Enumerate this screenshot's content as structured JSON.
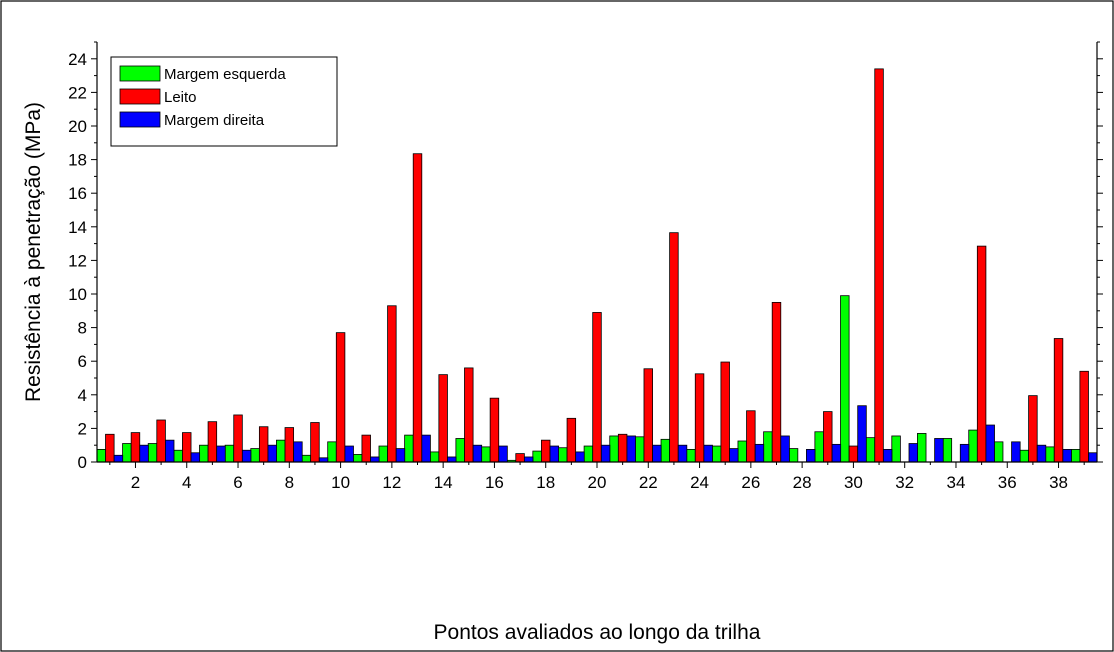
{
  "chart_data": {
    "type": "bar",
    "title": "",
    "xlabel": "Pontos avaliados ao longo da trilha",
    "ylabel": "Resistência à penetração (MPa)",
    "ylim": [
      0,
      25
    ],
    "yticks": [
      0,
      2,
      4,
      6,
      8,
      10,
      12,
      14,
      16,
      18,
      20,
      22,
      24
    ],
    "xlim": [
      0.5,
      39.5
    ],
    "xtick_labels": [
      "2",
      "4",
      "6",
      "8",
      "10",
      "12",
      "14",
      "16",
      "18",
      "20",
      "22",
      "24",
      "26",
      "28",
      "30",
      "32",
      "34",
      "36",
      "38"
    ],
    "xtick_values": [
      2,
      4,
      6,
      8,
      10,
      12,
      14,
      16,
      18,
      20,
      22,
      24,
      26,
      28,
      30,
      32,
      34,
      36,
      38
    ],
    "grid": false,
    "legend_position": "top-left",
    "categories": [
      1,
      2,
      3,
      4,
      5,
      6,
      7,
      8,
      9,
      10,
      11,
      12,
      13,
      14,
      15,
      16,
      17,
      18,
      19,
      20,
      21,
      22,
      23,
      24,
      25,
      26,
      27,
      28,
      29,
      30,
      31,
      32,
      33,
      34,
      35,
      36,
      37,
      38,
      39
    ],
    "series": [
      {
        "name": "Margem esquerda",
        "color": "#00ff00",
        "values": [
          0.75,
          1.1,
          1.1,
          0.7,
          1.0,
          1.0,
          0.8,
          1.3,
          0.4,
          1.2,
          0.45,
          0.95,
          1.6,
          0.6,
          1.4,
          0.9,
          0.1,
          0.65,
          0.85,
          0.95,
          1.55,
          1.5,
          1.35,
          0.75,
          0.95,
          1.25,
          1.8,
          0.8,
          1.8,
          9.9,
          1.45,
          1.55,
          1.7,
          1.4,
          1.9,
          1.2,
          0.7,
          0.9,
          0.75
        ]
      },
      {
        "name": "Leito",
        "color": "#ff0000",
        "values": [
          1.65,
          1.75,
          2.5,
          1.75,
          2.4,
          2.8,
          2.1,
          2.05,
          2.35,
          7.7,
          1.6,
          9.3,
          18.35,
          5.2,
          5.6,
          3.8,
          0.5,
          1.3,
          2.6,
          8.9,
          1.65,
          5.55,
          13.65,
          5.25,
          5.95,
          3.05,
          9.5,
          0.0,
          3.0,
          0.95,
          23.4,
          0.0,
          0.0,
          0.0,
          12.85,
          0.0,
          3.95,
          7.35,
          5.4
        ]
      },
      {
        "name": "Margem direita",
        "color": "#0000ff",
        "values": [
          0.4,
          1.0,
          1.3,
          0.55,
          0.95,
          0.7,
          1.0,
          1.2,
          0.25,
          0.95,
          0.3,
          0.8,
          1.6,
          0.3,
          1.0,
          0.95,
          0.3,
          0.95,
          0.6,
          1.0,
          1.55,
          1.0,
          1.0,
          1.0,
          0.8,
          1.05,
          1.55,
          0.75,
          1.05,
          3.35,
          0.75,
          1.1,
          1.4,
          1.05,
          2.2,
          1.2,
          1.0,
          0.75,
          0.55
        ]
      }
    ]
  }
}
